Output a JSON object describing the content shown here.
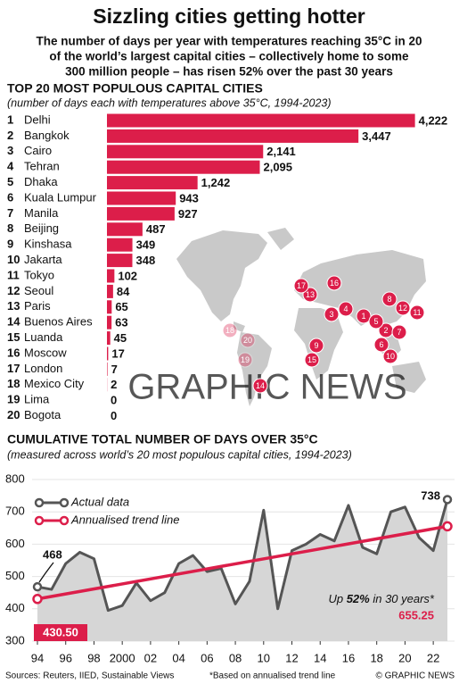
{
  "title": "Sizzling cities getting hotter",
  "subtitle": [
    "The number of days per year with temperatures reaching 35°C in 20",
    "of the world’s largest capital cities – collectively home to some",
    "300 million people – has risen 52% over the past 30 years"
  ],
  "watermark": "GRAPHIC NEWS",
  "chart_data": [
    {
      "type": "bar",
      "title": "TOP 20 MOST POPULOUS CAPITAL CITIES",
      "subtitle": "(number of days each with temperatures above 35°C, 1994-2023)",
      "ranks": [
        1,
        2,
        3,
        4,
        5,
        6,
        7,
        8,
        9,
        10,
        11,
        12,
        13,
        14,
        15,
        16,
        17,
        18,
        19,
        20
      ],
      "categories": [
        "Delhi",
        "Bangkok",
        "Cairo",
        "Tehran",
        "Dhaka",
        "Kuala Lumpur",
        "Manila",
        "Beijing",
        "Kinshasa",
        "Jakarta",
        "Tokyo",
        "Seoul",
        "Paris",
        "Buenos Aires",
        "Luanda",
        "Moscow",
        "London",
        "Mexico City",
        "Lima",
        "Bogota"
      ],
      "values": [
        4222,
        3447,
        2141,
        2095,
        1242,
        943,
        927,
        487,
        349,
        348,
        102,
        84,
        65,
        63,
        45,
        17,
        7,
        2,
        0,
        0
      ],
      "value_labels": [
        "4,222",
        "3,447",
        "2,141",
        "2,095",
        "1,242",
        "943",
        "927",
        "487",
        "349",
        "348",
        "102",
        "84",
        "65",
        "63",
        "45",
        "17",
        "7",
        "2",
        "0",
        "0"
      ],
      "color": "#dc1e4a",
      "xlim": [
        0,
        4300
      ]
    },
    {
      "type": "line",
      "title": "CUMULATIVE TOTAL NUMBER OF DAYS OVER 35°C",
      "subtitle": "(measured across world’s 20 most populous capital cities, 1994-2023)",
      "x": [
        1994,
        1995,
        1996,
        1997,
        1998,
        1999,
        2000,
        2001,
        2002,
        2003,
        2004,
        2005,
        2006,
        2007,
        2008,
        2009,
        2010,
        2011,
        2012,
        2013,
        2014,
        2015,
        2016,
        2017,
        2018,
        2019,
        2020,
        2021,
        2022,
        2023
      ],
      "series": [
        {
          "name": "Actual data",
          "color": "#555555",
          "area_color": "#d6d6d6",
          "values": [
            468,
            460,
            540,
            575,
            555,
            395,
            410,
            480,
            425,
            450,
            540,
            565,
            515,
            525,
            415,
            485,
            705,
            400,
            580,
            600,
            630,
            610,
            720,
            590,
            570,
            700,
            715,
            620,
            580,
            738
          ]
        },
        {
          "name": "Annualised trend line",
          "color": "#dc1e4a",
          "x": [
            1994,
            2023
          ],
          "values": [
            430.5,
            655.25
          ],
          "value_labels": [
            "430.50",
            "655.25"
          ]
        }
      ],
      "xlim": [
        1994,
        2023
      ],
      "xticks": [
        {
          "value": 1994,
          "label": "94"
        },
        {
          "value": 1996,
          "label": "96"
        },
        {
          "value": 1998,
          "label": "98"
        },
        2000,
        {
          "value": 2002,
          "label": "02"
        },
        {
          "value": 2004,
          "label": "04"
        },
        {
          "value": 2006,
          "label": "06"
        },
        {
          "value": 2008,
          "label": "08"
        },
        {
          "value": 2010,
          "label": "10"
        },
        {
          "value": 2012,
          "label": "12"
        },
        {
          "value": 2014,
          "label": "14"
        },
        {
          "value": 2016,
          "label": "16"
        },
        {
          "value": 2018,
          "label": "18"
        },
        {
          "value": 2020,
          "label": "20"
        },
        {
          "value": 2022,
          "label": "22"
        }
      ],
      "ylim": [
        300,
        800
      ],
      "yticks": [
        300,
        400,
        500,
        600,
        700,
        800
      ],
      "grid": true,
      "annotation": {
        "before": "Up ",
        "bold": "52%",
        "after": " in 30 years*"
      }
    }
  ],
  "footer": {
    "sources": "Sources: Reuters, IIED, Sustainable Views",
    "note": "*Based on annualised trend line",
    "credit": "© GRAPHIC NEWS"
  }
}
